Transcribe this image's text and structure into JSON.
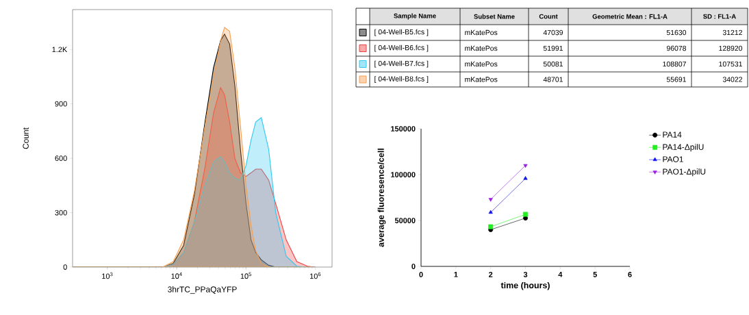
{
  "chart_data": [
    {
      "type": "area",
      "xlabel": "3hrTC_PPaQaYFP",
      "ylabel": "Count",
      "log": "x",
      "x": [
        315,
        6300,
        8900,
        12600,
        18000,
        25600,
        34000,
        43000,
        49000,
        58000,
        69000,
        83000,
        100000,
        118000,
        138000,
        166000,
        212000,
        268000,
        380000,
        540000,
        770000,
        980000
      ],
      "series": [
        {
          "color": "#000000",
          "values": [
            0,
            0,
            20,
            120,
            400,
            800,
            1100,
            1250,
            1285,
            1230,
            1000,
            650,
            350,
            150,
            80,
            40,
            10,
            0,
            0,
            0,
            0,
            0
          ]
        },
        {
          "color": "#f04040",
          "values": [
            0,
            0,
            15,
            80,
            250,
            550,
            850,
            990,
            950,
            800,
            600,
            520,
            500,
            520,
            540,
            540,
            480,
            350,
            150,
            30,
            5,
            0
          ]
        },
        {
          "color": "#30c8f0",
          "values": [
            0,
            0,
            15,
            80,
            250,
            450,
            580,
            608,
            580,
            520,
            490,
            480,
            560,
            700,
            800,
            824,
            650,
            300,
            60,
            5,
            0,
            0
          ]
        },
        {
          "color": "#f5a050",
          "values": [
            0,
            0,
            30,
            150,
            420,
            780,
            1050,
            1250,
            1322,
            1300,
            1100,
            780,
            450,
            230,
            90,
            20,
            0,
            0,
            0,
            0,
            0,
            0
          ]
        }
      ],
      "xlim": [
        315,
        1740000
      ],
      "ylim": [
        0,
        1420
      ],
      "xticks": [
        {
          "value": 1000,
          "label": "10$^{3}$"
        },
        {
          "value": 10000,
          "label": "10$^{4}$"
        },
        {
          "value": 100000,
          "label": "10$^{5}$"
        },
        {
          "value": 1000000,
          "label": "10$^{6}$"
        }
      ],
      "yticks": [
        0,
        300,
        600,
        900,
        {
          "value": 1200,
          "label": "1.2K"
        }
      ]
    },
    {
      "type": "other",
      "annotations": [
        "Sample Name",
        "Subset Name",
        "Count",
        "Geometric Mean : FL1-A",
        "SD : FL1-A",
        "[ 04-Well-B5.fcs ]",
        "mKatePos",
        "47039",
        "51630",
        "31212",
        "[ 04-Well-B6.fcs ]",
        "mKatePos",
        "51991",
        "96078",
        "128920",
        "[ 04-Well-B7.fcs ]",
        "mKatePos",
        "50081",
        "108807",
        "107531",
        "[ 04-Well-B8.fcs ]",
        "mKatePos",
        "48701",
        "55691",
        "34022"
      ]
    },
    {
      "type": "line",
      "xlabel": "time (hours)",
      "ylabel": "average fluoresence/cell",
      "x": [
        2,
        3
      ],
      "series": [
        {
          "name": "PA14",
          "color": "#000000",
          "marker": "circle",
          "values": [
            40000,
            52600
          ]
        },
        {
          "name": "PA14-ΔpilU",
          "color": "#22ee22",
          "marker": "square",
          "values": [
            43200,
            56700
          ]
        },
        {
          "name": "PAO1",
          "color": "#1010ee",
          "marker": "triangle",
          "values": [
            58800,
            95800
          ]
        },
        {
          "name": "PAO1-ΔpilU",
          "color": "#9a20e0",
          "marker": "triangle-down",
          "values": [
            73100,
            110000
          ]
        }
      ],
      "xlim": [
        0,
        6
      ],
      "ylim": [
        0,
        150000
      ],
      "xticks": [
        0,
        1,
        2,
        3,
        4,
        5,
        6
      ],
      "yticks": [
        0,
        50000,
        100000,
        150000
      ],
      "legend": "right"
    }
  ]
}
